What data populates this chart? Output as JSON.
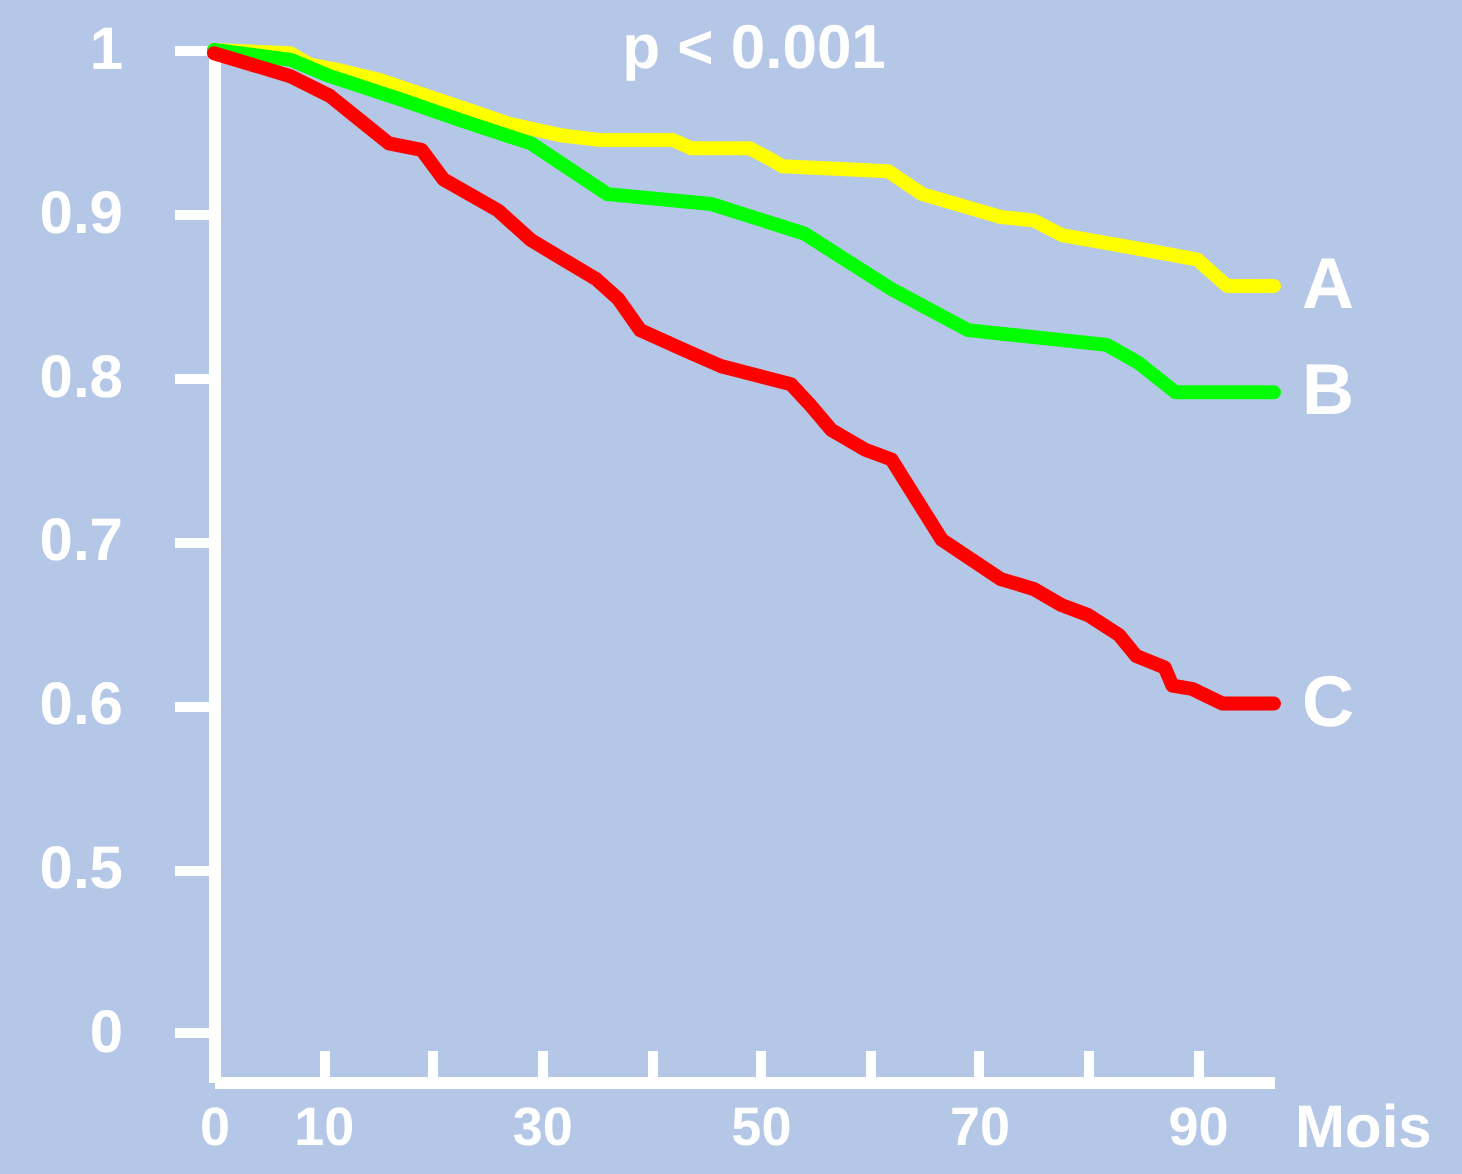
{
  "chart_data": {
    "type": "line",
    "xlabel": "Mois",
    "annotations": [
      "p < 0.001"
    ],
    "xlim": [
      0,
      97
    ],
    "xticks": [
      0,
      10,
      {
        "value": 20,
        "label": null
      },
      30,
      {
        "value": 40,
        "label": null
      },
      50,
      {
        "value": 60,
        "label": null
      },
      70,
      {
        "value": 80,
        "label": null
      },
      90
    ],
    "ylim": [
      0.37,
      1
    ],
    "yticks": [
      {
        "value": 0.4,
        "label": "0"
      },
      0.5,
      0.6,
      0.7,
      0.8,
      0.9,
      1
    ],
    "series": [
      {
        "name": "A",
        "color": "#ffff00",
        "x": [
          0,
          7,
          8.8,
          11.2,
          15,
          19,
          23.5,
          27,
          31.7,
          35.4,
          42,
          43.7,
          49,
          51,
          52,
          61.7,
          64.8,
          72,
          75,
          77.6,
          86,
          90,
          92.7,
          97
        ],
        "values": [
          1,
          0.998,
          0.991,
          0.988,
          0.982,
          0.973,
          0.963,
          0.955,
          0.948,
          0.945,
          0.945,
          0.94,
          0.94,
          0.933,
          0.929,
          0.926,
          0.912,
          0.898,
          0.896,
          0.887,
          0.877,
          0.872,
          0.856,
          0.856
        ]
      },
      {
        "name": "B",
        "color": "#00ff00",
        "x": [
          0,
          7,
          10.6,
          17,
          22.6,
          29,
          36,
          45.5,
          54,
          62,
          69,
          81.7,
          84.6,
          88,
          97
        ],
        "values": [
          1,
          0.994,
          0.984,
          0.97,
          0.957,
          0.943,
          0.912,
          0.906,
          0.888,
          0.854,
          0.829,
          0.82,
          0.809,
          0.791,
          0.791
        ]
      },
      {
        "name": "C",
        "color": "#ff0000",
        "x": [
          0,
          7,
          10.6,
          13.4,
          16,
          19,
          21,
          26,
          29,
          32,
          35,
          37,
          39,
          43,
          46.4,
          52.8,
          54.6,
          56.5,
          59.6,
          62,
          66.6,
          72,
          75,
          77.6,
          80,
          82.8,
          84.4,
          87,
          87.7,
          89.5,
          92.3,
          97
        ],
        "values": [
          0.998,
          0.984,
          0.972,
          0.957,
          0.943,
          0.939,
          0.921,
          0.902,
          0.884,
          0.872,
          0.86,
          0.848,
          0.829,
          0.817,
          0.807,
          0.796,
          0.783,
          0.768,
          0.756,
          0.75,
          0.701,
          0.677,
          0.671,
          0.661,
          0.655,
          0.643,
          0.63,
          0.623,
          0.612,
          0.61,
          0.601,
          0.601
        ]
      }
    ]
  }
}
